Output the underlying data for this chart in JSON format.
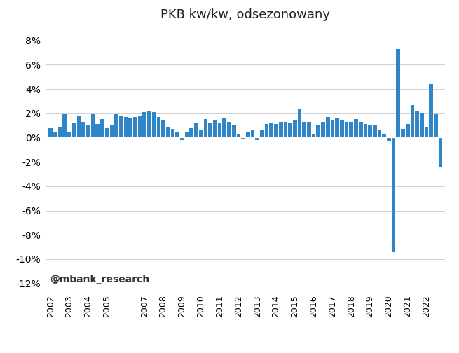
{
  "title": "PKB kw/kw, odsezonowany",
  "bar_color": "#2E86C8",
  "annotation": "@mbank_research",
  "ylim": [
    -0.125,
    0.09
  ],
  "yticks": [
    -0.12,
    -0.1,
    -0.08,
    -0.06,
    -0.04,
    -0.02,
    0.0,
    0.02,
    0.04,
    0.06,
    0.08
  ],
  "background_color": "#ffffff",
  "xlabel_years": [
    "2002",
    "2003",
    "2004",
    "2005",
    "2007",
    "2008",
    "2009",
    "2010",
    "2011",
    "2012",
    "2013",
    "2014",
    "2015",
    "2016",
    "2017",
    "2018",
    "2019",
    "2020",
    "2021",
    "2022"
  ],
  "values": [
    0.008,
    0.005,
    0.009,
    0.019,
    0.005,
    0.012,
    0.018,
    0.013,
    0.01,
    0.019,
    0.011,
    0.015,
    0.008,
    0.01,
    0.019,
    0.018,
    0.017,
    0.016,
    0.017,
    0.018,
    0.021,
    0.022,
    0.021,
    0.017,
    0.014,
    0.009,
    0.007,
    0.005,
    -0.002,
    0.005,
    0.008,
    0.012,
    0.006,
    0.015,
    0.012,
    0.014,
    0.012,
    0.016,
    0.013,
    0.01,
    0.003,
    -0.001,
    0.005,
    0.006,
    -0.002,
    0.006,
    0.011,
    0.012,
    0.011,
    0.013,
    0.013,
    0.012,
    0.014,
    0.024,
    0.013,
    0.013,
    0.003,
    0.01,
    0.013,
    0.017,
    0.014,
    0.016,
    0.014,
    0.013,
    0.013,
    0.015,
    0.013,
    0.011,
    0.01,
    0.01,
    0.006,
    0.003,
    -0.003,
    -0.094,
    0.073,
    0.007,
    0.011,
    0.027,
    0.022,
    0.02,
    0.009,
    0.044,
    0.019,
    -0.024
  ],
  "year_tick_positions": [
    0,
    4,
    8,
    12,
    20,
    24,
    28,
    32,
    36,
    40,
    44,
    48,
    52,
    56,
    60,
    64,
    68,
    72,
    76,
    80
  ],
  "grid_color": "#d0d0d0",
  "grid_linewidth": 0.7
}
